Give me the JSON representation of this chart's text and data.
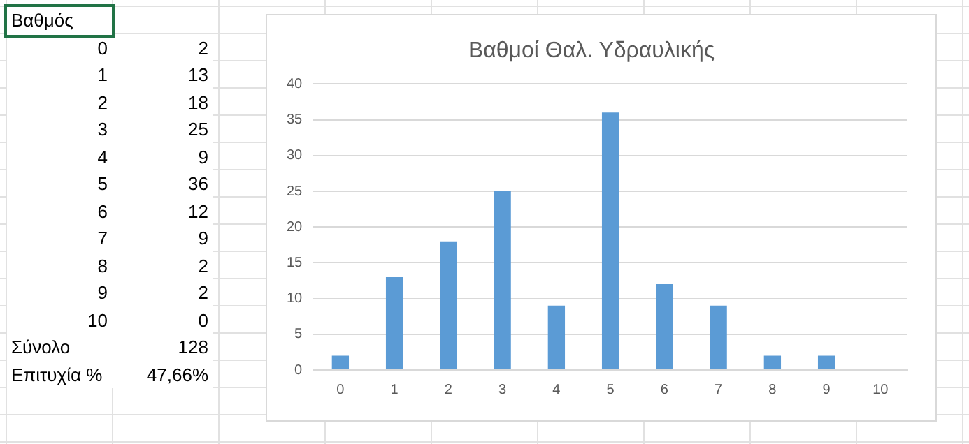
{
  "chart_data": {
    "type": "bar",
    "title": "Βαθμοί Θαλ. Υδραυλικής",
    "categories": [
      "0",
      "1",
      "2",
      "3",
      "4",
      "5",
      "6",
      "7",
      "8",
      "9",
      "10"
    ],
    "values": [
      2,
      13,
      18,
      25,
      9,
      36,
      12,
      9,
      2,
      2,
      0
    ],
    "color": "#5b9bd5",
    "ylim": [
      0,
      40
    ],
    "yticks": [
      0,
      5,
      10,
      15,
      20,
      25,
      30,
      35,
      40
    ],
    "grid": "y",
    "legend": false,
    "annotations": [
      "Βαθμός",
      "0",
      "2",
      "1",
      "13",
      "2",
      "18",
      "3",
      "25",
      "4",
      "9",
      "5",
      "36",
      "6",
      "12",
      "7",
      "9",
      "8",
      "2",
      "9",
      "2",
      "10",
      "0",
      "Σύνολο",
      "128",
      "Επιτυχία %",
      "47,66%"
    ]
  }
}
